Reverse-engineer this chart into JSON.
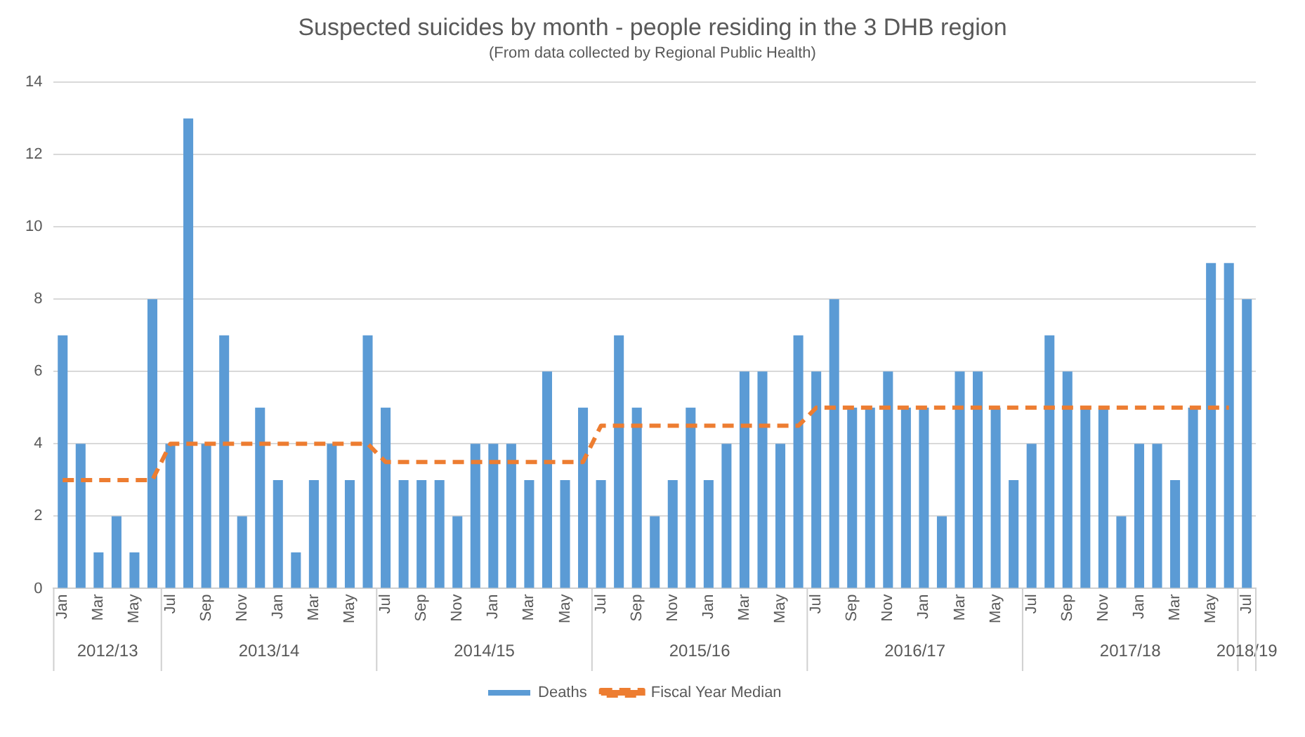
{
  "chart_data": {
    "type": "bar",
    "title": "Suspected suicides by month - people residing in the 3 DHB region",
    "subtitle": "(From data collected by Regional Public Health)",
    "categories": [
      "Jan",
      null,
      "Mar",
      null,
      "May",
      null,
      "Jul",
      null,
      "Sep",
      null,
      "Nov",
      null,
      "Jan",
      null,
      "Mar",
      null,
      "May",
      null,
      "Jul",
      null,
      "Sep",
      null,
      "Nov",
      null,
      "Jan",
      null,
      "Mar",
      null,
      "May",
      null,
      "Jul",
      null,
      "Sep",
      null,
      "Nov",
      null,
      "Jan",
      null,
      "Mar",
      null,
      "May",
      null,
      "Jul",
      null,
      "Sep",
      null,
      "Nov",
      null,
      "Jan",
      null,
      "Mar",
      null,
      "May",
      null,
      "Jul",
      null,
      "Sep",
      null,
      "Nov",
      null,
      "Jan",
      null,
      "Mar",
      null,
      "May",
      null,
      "Jul"
    ],
    "series": [
      {
        "name": "Deaths",
        "color": "#5b9bd5",
        "values": [
          7,
          4,
          1,
          2,
          1,
          8,
          4,
          13,
          4,
          7,
          2,
          5,
          3,
          1,
          3,
          4,
          3,
          7,
          5,
          3,
          3,
          3,
          2,
          4,
          4,
          4,
          3,
          6,
          3,
          5,
          3,
          7,
          5,
          2,
          3,
          5,
          3,
          4,
          6,
          6,
          4,
          7,
          6,
          8,
          5,
          5,
          6,
          5,
          5,
          2,
          6,
          6,
          5,
          3,
          4,
          7,
          6,
          5,
          5,
          2,
          4,
          4,
          3,
          5,
          9,
          9,
          8
        ]
      },
      {
        "name": "Fiscal Year Median",
        "type": "line",
        "color": "#ed7d31",
        "line_style": "dashed",
        "marker": "none",
        "values": [
          3,
          3,
          3,
          3,
          3,
          3,
          4,
          4,
          4,
          4,
          4,
          4,
          4,
          4,
          4,
          4,
          4,
          4,
          3.5,
          3.5,
          3.5,
          3.5,
          3.5,
          3.5,
          3.5,
          3.5,
          3.5,
          3.5,
          3.5,
          3.5,
          4.5,
          4.5,
          4.5,
          4.5,
          4.5,
          4.5,
          4.5,
          4.5,
          4.5,
          4.5,
          4.5,
          4.5,
          5,
          5,
          5,
          5,
          5,
          5,
          5,
          5,
          5,
          5,
          5,
          5,
          5,
          5,
          5,
          5,
          5,
          5,
          5,
          5,
          5,
          5,
          5,
          5,
          null
        ]
      }
    ],
    "annotations": [
      "2012/13",
      "2013/14",
      "2014/15",
      "2015/16",
      "2016/17",
      "2017/18",
      "2018/19"
    ],
    "ylim": [
      0,
      14
    ],
    "yticks": [
      0,
      2,
      4,
      6,
      8,
      10,
      12,
      14
    ],
    "grid": "y",
    "legend": "bottom"
  }
}
